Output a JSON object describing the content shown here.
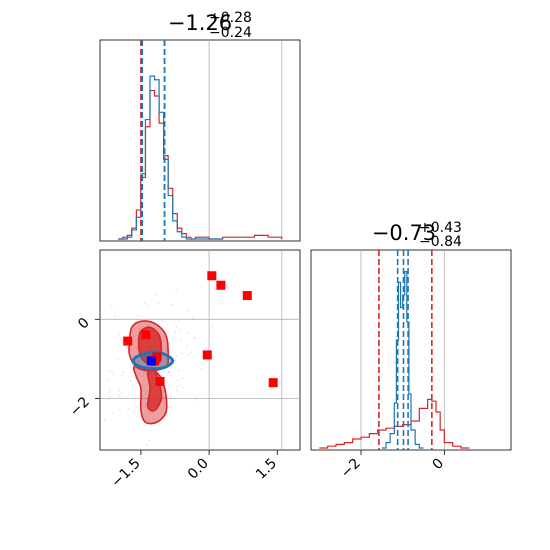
{
  "chart_data": {
    "type": "corner",
    "colors": {
      "red": "#d62728",
      "blue": "#1f77b4",
      "grid": "#b0b0b0",
      "red_point": "#ff0000",
      "blue_point": "#0000ff"
    },
    "panels": [
      {
        "id": "hist_x",
        "type": "histogram",
        "title": {
          "base": "−1.26",
          "sup": "+0.28",
          "sub": "−0.24"
        },
        "xlim": [
          -2.4,
          2.0
        ],
        "x_grid": [
          0.0,
          1.6
        ],
        "red_quantiles": [
          -1.5,
          -0.98
        ],
        "blue_quantiles": [
          -1.47,
          -0.98
        ],
        "red_series": {
          "x": [
            -2.0,
            -1.9,
            -1.8,
            -1.7,
            -1.6,
            -1.5,
            -1.4,
            -1.3,
            -1.2,
            -1.1,
            -1.0,
            -0.9,
            -0.8,
            -0.7,
            -0.6,
            -0.5,
            -0.4,
            -0.3,
            0.0,
            0.3,
            0.7,
            1.0,
            1.3
          ],
          "y": [
            0.0,
            0.01,
            0.02,
            0.06,
            0.16,
            0.34,
            0.62,
            0.82,
            0.79,
            0.64,
            0.46,
            0.28,
            0.14,
            0.06,
            0.03,
            0.01,
            0.0,
            0.01,
            0.0,
            0.01,
            0.01,
            0.02,
            0.01
          ]
        },
        "blue_series": {
          "x": [
            -2.0,
            -1.9,
            -1.8,
            -1.7,
            -1.6,
            -1.5,
            -1.4,
            -1.3,
            -1.2,
            -1.1,
            -1.0,
            -0.9,
            -0.8,
            -0.7,
            -0.6,
            -0.5,
            -0.4,
            -0.3,
            0.0
          ],
          "y": [
            0.0,
            0.0,
            0.01,
            0.05,
            0.12,
            0.36,
            0.66,
            0.9,
            0.88,
            0.7,
            0.44,
            0.24,
            0.1,
            0.04,
            0.01,
            0.0,
            0.0,
            0.0,
            0.0
          ]
        }
      },
      {
        "id": "hist_y",
        "type": "histogram",
        "title": {
          "base": "−0.73",
          "sup": "+0.43",
          "sub": "−0.84"
        },
        "xlim": [
          -3.2,
          1.6
        ],
        "x_ticks": [
          -2,
          0
        ],
        "x_tick_labels": [
          "−2",
          "0"
        ],
        "x_grid": [
          -2,
          0
        ],
        "red_quantiles": [
          -1.57,
          -0.3
        ],
        "blue_quantiles": [
          -1.12,
          -0.98,
          -0.87
        ],
        "red_series": {
          "x": [
            -3.0,
            -2.8,
            -2.6,
            -2.4,
            -2.2,
            -2.0,
            -1.8,
            -1.6,
            -1.4,
            -1.2,
            -1.0,
            -0.8,
            -0.6,
            -0.4,
            -0.3,
            -0.2,
            -0.1,
            0.0,
            0.2,
            0.4
          ],
          "y": [
            0.0,
            0.01,
            0.02,
            0.03,
            0.05,
            0.06,
            0.08,
            0.1,
            0.11,
            0.12,
            0.13,
            0.15,
            0.22,
            0.27,
            0.26,
            0.2,
            0.1,
            0.03,
            0.01,
            0.0
          ]
        },
        "blue_series": {
          "x": [
            -1.5,
            -1.4,
            -1.3,
            -1.2,
            -1.15,
            -1.1,
            -1.05,
            -1.0,
            -0.95,
            -0.9,
            -0.85,
            -0.8,
            -0.7,
            -0.6
          ],
          "y": [
            0.0,
            0.03,
            0.08,
            0.25,
            0.6,
            0.92,
            0.78,
            0.85,
            0.98,
            0.7,
            0.3,
            0.1,
            0.02,
            0.0
          ]
        }
      },
      {
        "id": "scatter_2d",
        "type": "contour_scatter",
        "xlim": [
          -2.4,
          2.0
        ],
        "ylim": [
          -3.3,
          1.75
        ],
        "x_ticks": [
          -1.5,
          0.0,
          1.5
        ],
        "x_tick_labels": [
          "−1.5",
          "0.0",
          "1.5"
        ],
        "y_ticks": [
          0,
          -2
        ],
        "y_tick_labels": [
          "0",
          "−2"
        ],
        "x_grid": [
          0.0,
          1.6
        ],
        "y_grid": [
          0,
          -2
        ],
        "red_contours": [
          [
            [
              -1.75,
              -0.55
            ],
            [
              -1.7,
              -0.2
            ],
            [
              -1.5,
              -0.05
            ],
            [
              -1.2,
              -0.1
            ],
            [
              -0.95,
              -0.4
            ],
            [
              -0.9,
              -0.9
            ],
            [
              -0.95,
              -1.2
            ],
            [
              -1.3,
              -1.3
            ],
            [
              -1.6,
              -1.2
            ],
            [
              -1.75,
              -0.9
            ]
          ],
          [
            [
              -1.65,
              -1.2
            ],
            [
              -1.6,
              -1.45
            ],
            [
              -1.5,
              -1.75
            ],
            [
              -1.5,
              -2.3
            ],
            [
              -1.4,
              -2.6
            ],
            [
              -1.15,
              -2.6
            ],
            [
              -0.95,
              -2.35
            ],
            [
              -0.95,
              -1.9
            ],
            [
              -1.05,
              -1.5
            ],
            [
              -1.2,
              -1.3
            ],
            [
              -1.4,
              -1.25
            ]
          ],
          [
            [
              -1.55,
              -0.55
            ],
            [
              -1.5,
              -0.3
            ],
            [
              -1.3,
              -0.2
            ],
            [
              -1.1,
              -0.4
            ],
            [
              -1.05,
              -0.8
            ],
            [
              -1.1,
              -1.1
            ],
            [
              -1.3,
              -1.15
            ],
            [
              -1.5,
              -0.95
            ]
          ],
          [
            [
              -1.35,
              -1.35
            ],
            [
              -1.3,
              -1.75
            ],
            [
              -1.35,
              -2.2
            ],
            [
              -1.2,
              -2.3
            ],
            [
              -1.05,
              -2.0
            ],
            [
              -1.1,
              -1.6
            ],
            [
              -1.2,
              -1.3
            ]
          ]
        ],
        "blue_contours": [
          [
            [
              -1.65,
              -1.0
            ],
            [
              -1.5,
              -0.9
            ],
            [
              -1.2,
              -0.82
            ],
            [
              -0.95,
              -0.9
            ],
            [
              -0.8,
              -1.05
            ],
            [
              -0.95,
              -1.2
            ],
            [
              -1.2,
              -1.25
            ],
            [
              -1.5,
              -1.2
            ],
            [
              -1.65,
              -1.1
            ]
          ]
        ],
        "red_points": {
          "x": [
            -1.79,
            -1.39,
            -1.15,
            -1.08,
            0.06,
            0.26,
            0.84,
            1.41,
            -0.04,
            -1.2
          ],
          "y": [
            -0.55,
            -0.39,
            -0.95,
            -1.57,
            1.1,
            0.86,
            0.6,
            -1.6,
            -0.9,
            -1.05
          ]
        },
        "blue_points": {
          "x": [
            -1.27
          ],
          "y": [
            -1.05
          ]
        }
      }
    ]
  }
}
